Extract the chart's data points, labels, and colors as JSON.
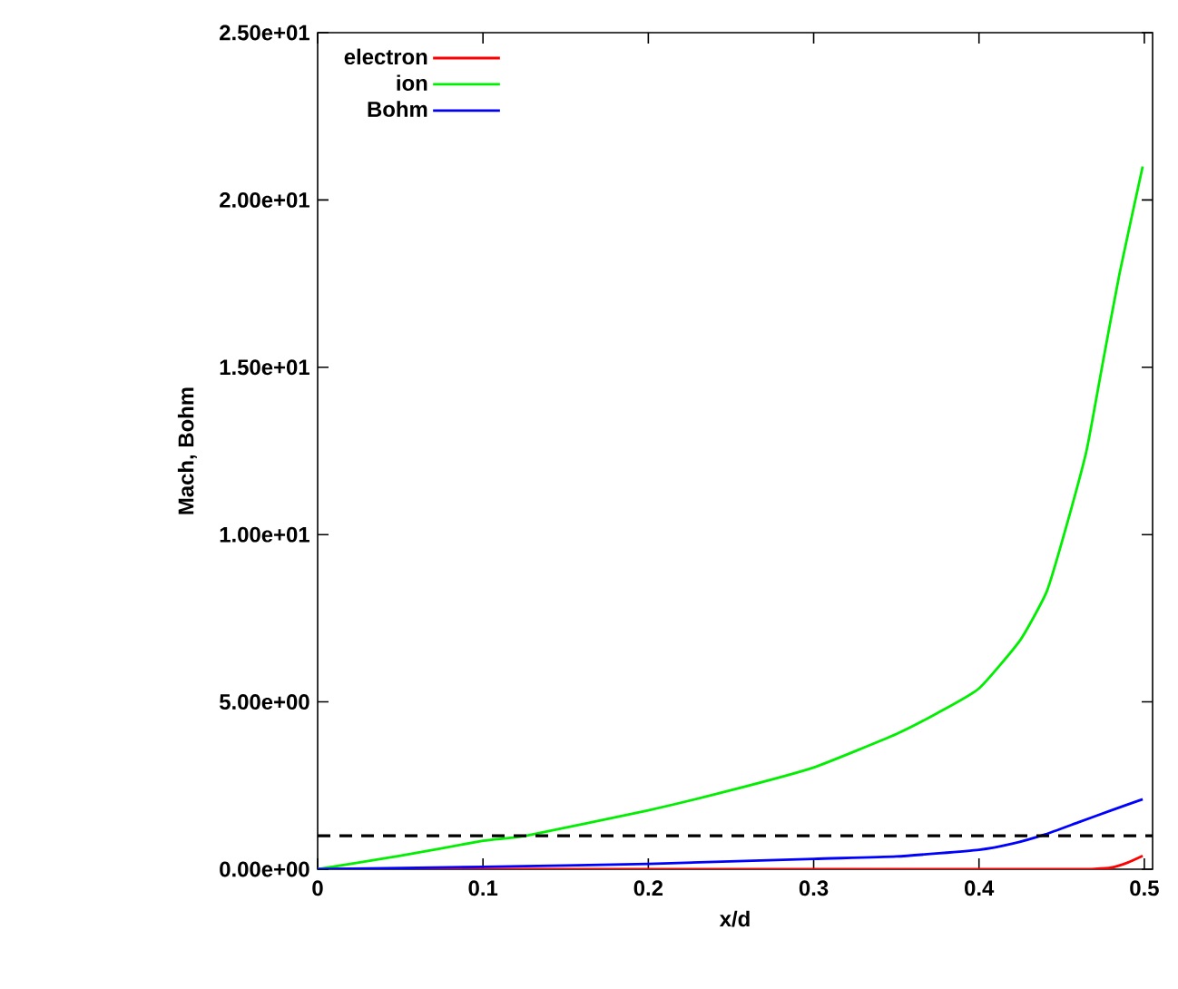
{
  "chart_data": {
    "type": "line",
    "xlabel": "x/d",
    "ylabel": "Mach, Bohm",
    "xlim": [
      0,
      0.505
    ],
    "ylim": [
      0,
      25
    ],
    "xticks": [
      0,
      0.1,
      0.2,
      0.3,
      0.4,
      0.5
    ],
    "yticks": [
      {
        "value": 0,
        "label": "0.00e+00"
      },
      {
        "value": 5,
        "label": "5.00e+00"
      },
      {
        "value": 10,
        "label": "1.00e+01"
      },
      {
        "value": 15,
        "label": "1.50e+01"
      },
      {
        "value": 20,
        "label": "2.00e+01"
      },
      {
        "value": 25,
        "label": "2.50e+01"
      }
    ],
    "legend": "top left",
    "grid": false,
    "line_style": "solid",
    "ref_lines": [
      {
        "axis": "y",
        "value": 1,
        "color": "#000000",
        "line_style": "dashed"
      }
    ],
    "series": [
      {
        "name": "electron",
        "color": "#ff0000",
        "x": [
          0,
          0.1,
          0.2,
          0.3,
          0.4,
          0.46,
          0.47,
          0.48,
          0.49,
          0.499
        ],
        "values": [
          0,
          0,
          0,
          0,
          0,
          0,
          0.01,
          0.05,
          0.2,
          0.4
        ]
      },
      {
        "name": "ion",
        "color": "#00ee00",
        "x": [
          0,
          0.05,
          0.1,
          0.126,
          0.2,
          0.25,
          0.3,
          0.35,
          0.375,
          0.4,
          0.425,
          0.441,
          0.452,
          0.465,
          0.474,
          0.485,
          0.499
        ],
        "values": [
          0,
          0.4,
          0.85,
          1,
          1.76,
          2.36,
          3.04,
          4.04,
          4.67,
          5.4,
          6.85,
          8.3,
          10.1,
          12.5,
          14.9,
          17.8,
          21.0
        ]
      },
      {
        "name": "Bohm",
        "color": "#0000ff",
        "x": [
          0,
          0.1,
          0.2,
          0.3,
          0.35,
          0.4,
          0.42,
          0.44,
          0.46,
          0.48,
          0.499
        ],
        "values": [
          0,
          0.07,
          0.16,
          0.31,
          0.38,
          0.58,
          0.76,
          1.04,
          1.4,
          1.76,
          2.09
        ]
      }
    ]
  }
}
